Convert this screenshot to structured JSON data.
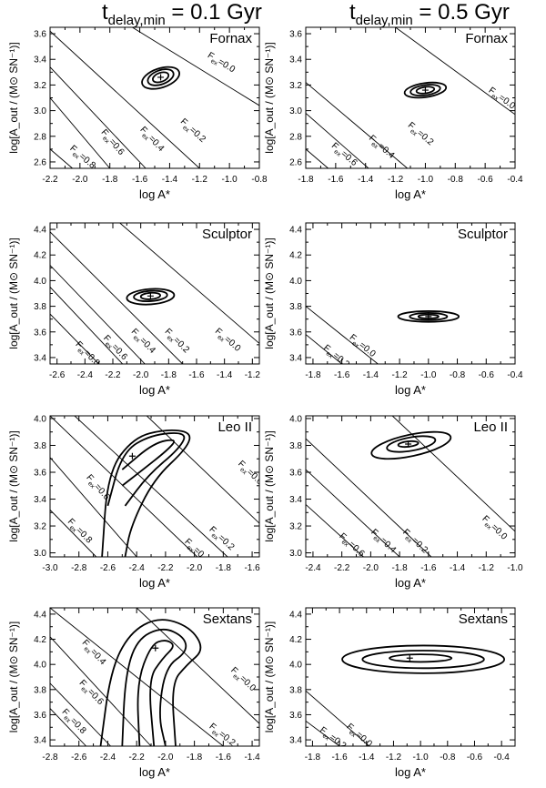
{
  "columns": [
    {
      "title_t": "t",
      "title_sub": "delay,min",
      "title_rest": " = 0.1 Gyr"
    },
    {
      "title_t": "t",
      "title_sub": "delay,min",
      "title_rest": " = 0.5 Gyr"
    }
  ],
  "ylabel": "log[A_out / (M⊙ SN⁻¹)]",
  "xlabel": "log A*",
  "chart_data": [
    {
      "type": "contour",
      "galaxy": "Fornax",
      "tdelay_gyr": 0.1,
      "xlim": [
        -2.2,
        -0.8
      ],
      "ylim": [
        2.55,
        3.65
      ],
      "xticks": [
        "-2.2",
        "-2.0",
        "-1.8",
        "-1.6",
        "-1.4",
        "-1.2",
        "-1.0",
        "-0.8"
      ],
      "yticks": [
        "2.6",
        "2.8",
        "3.0",
        "3.2",
        "3.4",
        "3.6"
      ],
      "best_fit": {
        "x": -1.46,
        "y": 3.26
      },
      "fex_lines": [
        {
          "label": "0.8",
          "p1": [
            -2.05,
            2.55
          ],
          "p2": [
            -2.2,
            2.7
          ],
          "lx": -2.07,
          "ly": 2.7
        },
        {
          "label": "0.6",
          "p1": [
            -1.8,
            2.55
          ],
          "p2": [
            -2.2,
            3.1
          ],
          "lx": -1.86,
          "ly": 2.83
        },
        {
          "label": "0.4",
          "p1": [
            -1.56,
            2.55
          ],
          "p2": [
            -2.2,
            3.34
          ],
          "lx": -1.6,
          "ly": 2.85
        },
        {
          "label": "0.2",
          "p1": [
            -1.2,
            2.55
          ],
          "p2": [
            -2.2,
            3.62
          ],
          "lx": -1.33,
          "ly": 2.91
        },
        {
          "label": "0.0",
          "p1": [
            -0.8,
            3.04
          ],
          "p2": [
            -1.65,
            3.65
          ],
          "lx": -1.15,
          "ly": 3.42
        }
      ],
      "contours": [
        {
          "cx": -1.46,
          "cy": 3.26,
          "rx": 0.055,
          "ry": 0.035,
          "rot": -20
        },
        {
          "cx": -1.46,
          "cy": 3.26,
          "rx": 0.09,
          "ry": 0.055,
          "rot": -20
        },
        {
          "cx": -1.46,
          "cy": 3.255,
          "rx": 0.13,
          "ry": 0.075,
          "rot": -18
        }
      ]
    },
    {
      "type": "contour",
      "galaxy": "Fornax",
      "tdelay_gyr": 0.5,
      "xlim": [
        -1.8,
        -0.4
      ],
      "ylim": [
        2.55,
        3.65
      ],
      "xticks": [
        "-1.8",
        "-1.6",
        "-1.4",
        "-1.2",
        "-1.0",
        "-0.8",
        "-0.6",
        "-0.4"
      ],
      "yticks": [
        "2.6",
        "2.8",
        "3.0",
        "3.2",
        "3.4",
        "3.6"
      ],
      "best_fit": {
        "x": -1.0,
        "y": 3.16
      },
      "fex_lines": [
        {
          "label": "0.6",
          "p1": [
            -1.65,
            2.55
          ],
          "p2": [
            -1.8,
            2.7
          ],
          "lx": -1.63,
          "ly": 2.72
        },
        {
          "label": "0.4",
          "p1": [
            -1.38,
            2.55
          ],
          "p2": [
            -1.8,
            2.98
          ],
          "lx": -1.38,
          "ly": 2.78
        },
        {
          "label": "0.2",
          "p1": [
            -1.12,
            2.55
          ],
          "p2": [
            -1.8,
            3.22
          ],
          "lx": -1.12,
          "ly": 2.88
        },
        {
          "label": "0.0",
          "p1": [
            -0.4,
            2.97
          ],
          "p2": [
            -1.2,
            3.65
          ],
          "lx": -0.58,
          "ly": 3.15
        }
      ],
      "contours": [
        {
          "cx": -1.0,
          "cy": 3.16,
          "rx": 0.06,
          "ry": 0.025,
          "rot": -8
        },
        {
          "cx": -1.0,
          "cy": 3.16,
          "rx": 0.1,
          "ry": 0.04,
          "rot": -8
        },
        {
          "cx": -1.0,
          "cy": 3.16,
          "rx": 0.14,
          "ry": 0.055,
          "rot": -8
        }
      ]
    },
    {
      "type": "contour",
      "galaxy": "Sculptor",
      "tdelay_gyr": 0.1,
      "xlim": [
        -2.65,
        -1.15
      ],
      "ylim": [
        3.35,
        4.45
      ],
      "xticks": [
        "-2.6",
        "-2.4",
        "-2.2",
        "-2.0",
        "-1.8",
        "-1.6",
        "-1.4",
        "-1.2"
      ],
      "yticks": [
        "3.4",
        "3.6",
        "3.8",
        "4.0",
        "4.2",
        "4.4"
      ],
      "best_fit": {
        "x": -1.93,
        "y": 3.88
      },
      "fex_lines": [
        {
          "label": "0.8",
          "p1": [
            -2.3,
            3.35
          ],
          "p2": [
            -2.65,
            3.74
          ],
          "lx": -2.47,
          "ly": 3.5
        },
        {
          "label": "0.6",
          "p1": [
            -2.13,
            3.35
          ],
          "p2": [
            -2.65,
            3.95
          ],
          "lx": -2.27,
          "ly": 3.55
        },
        {
          "label": "0.4",
          "p1": [
            -1.97,
            3.35
          ],
          "p2": [
            -2.65,
            4.12
          ],
          "lx": -2.07,
          "ly": 3.6
        },
        {
          "label": "0.2",
          "p1": [
            -1.7,
            3.35
          ],
          "p2": [
            -2.65,
            4.38
          ],
          "lx": -1.83,
          "ly": 3.6
        },
        {
          "label": "0.0",
          "p1": [
            -1.15,
            3.51
          ],
          "p2": [
            -2.15,
            4.45
          ],
          "lx": -1.47,
          "ly": 3.6
        }
      ],
      "contours": [
        {
          "cx": -1.93,
          "cy": 3.88,
          "rx": 0.07,
          "ry": 0.025,
          "rot": -4
        },
        {
          "cx": -1.93,
          "cy": 3.88,
          "rx": 0.12,
          "ry": 0.04,
          "rot": -4
        },
        {
          "cx": -1.93,
          "cy": 3.875,
          "rx": 0.17,
          "ry": 0.06,
          "rot": -4
        }
      ]
    },
    {
      "type": "contour",
      "galaxy": "Sculptor",
      "tdelay_gyr": 0.5,
      "xlim": [
        -1.85,
        -0.4
      ],
      "ylim": [
        3.35,
        4.45
      ],
      "xticks": [
        "-1.8",
        "-1.6",
        "-1.4",
        "-1.2",
        "-1.0",
        "-0.8",
        "-0.6",
        "-0.4"
      ],
      "yticks": [
        "3.4",
        "3.6",
        "3.8",
        "4.0",
        "4.2",
        "4.4"
      ],
      "best_fit": {
        "x": -1.0,
        "y": 3.72
      },
      "fex_lines": [
        {
          "label": "0.2",
          "p1": [
            -1.6,
            3.35
          ],
          "p2": [
            -1.85,
            3.58
          ],
          "lx": -1.73,
          "ly": 3.47
        },
        {
          "label": "0.0",
          "p1": [
            -1.35,
            3.35
          ],
          "p2": [
            -1.85,
            3.8
          ],
          "lx": -1.55,
          "ly": 3.55
        }
      ],
      "contours": [
        {
          "cx": -1.0,
          "cy": 3.72,
          "rx": 0.07,
          "ry": 0.015,
          "rot": 0
        },
        {
          "cx": -1.0,
          "cy": 3.72,
          "rx": 0.13,
          "ry": 0.028,
          "rot": 0
        },
        {
          "cx": -1.0,
          "cy": 3.72,
          "rx": 0.21,
          "ry": 0.042,
          "rot": 0
        }
      ]
    },
    {
      "type": "contour",
      "galaxy": "Leo II",
      "tdelay_gyr": 0.1,
      "xlim": [
        -3.0,
        -1.55
      ],
      "ylim": [
        2.97,
        4.02
      ],
      "xticks": [
        "-3.0",
        "-2.8",
        "-2.6",
        "-2.4",
        "-2.2",
        "-2.0",
        "-1.8",
        "-1.6"
      ],
      "yticks": [
        "3.0",
        "3.2",
        "3.4",
        "3.6",
        "3.8",
        "4.0"
      ],
      "best_fit": {
        "x": -2.43,
        "y": 3.72
      },
      "fex_lines": [
        {
          "label": "0.8",
          "p1": [
            -2.68,
            2.97
          ],
          "p2": [
            -3.0,
            3.32
          ],
          "lx": -2.88,
          "ly": 3.23
        },
        {
          "label": "0.6",
          "p1": [
            -2.4,
            2.97
          ],
          "p2": [
            -3.0,
            3.71
          ],
          "lx": -2.75,
          "ly": 3.56
        },
        {
          "label": "0.4",
          "p1": [
            -1.98,
            2.97
          ],
          "p2": [
            -3.0,
            4.02
          ],
          "lx": -2.07,
          "ly": 3.08
        },
        {
          "label": "0.2",
          "p1": [
            -1.77,
            2.97
          ],
          "p2": [
            -2.83,
            4.02
          ],
          "lx": -1.9,
          "ly": 3.17
        },
        {
          "label": "0.0",
          "p1": [
            -1.55,
            3.22
          ],
          "p2": [
            -2.33,
            4.02
          ],
          "lx": -1.7,
          "ly": 3.66
        }
      ],
      "banana": [
        {
          "pts": [
            [
              -2.5,
              3.62
            ],
            [
              -2.28,
              3.82
            ],
            [
              -2.12,
              3.85
            ],
            [
              -2.18,
              3.77
            ],
            [
              -2.38,
              3.6
            ],
            [
              -2.5,
              3.5
            ]
          ]
        },
        {
          "pts": [
            [
              -2.6,
              3.35
            ],
            [
              -2.5,
              3.75
            ],
            [
              -2.3,
              3.88
            ],
            [
              -2.05,
              3.9
            ],
            [
              -2.1,
              3.78
            ],
            [
              -2.32,
              3.58
            ],
            [
              -2.48,
              3.35
            ]
          ]
        },
        {
          "pts": [
            [
              -2.64,
              2.97
            ],
            [
              -2.6,
              3.6
            ],
            [
              -2.42,
              3.86
            ],
            [
              -2.2,
              3.92
            ],
            [
              -2.02,
              3.9
            ],
            [
              -2.05,
              3.78
            ],
            [
              -2.28,
              3.55
            ],
            [
              -2.44,
              3.2
            ],
            [
              -2.48,
              2.97
            ]
          ]
        }
      ]
    },
    {
      "type": "contour",
      "galaxy": "Leo II",
      "tdelay_gyr": 0.5,
      "xlim": [
        -2.45,
        -1.0
      ],
      "ylim": [
        2.97,
        4.02
      ],
      "xticks": [
        "-2.4",
        "-2.2",
        "-2.0",
        "-1.8",
        "-1.6",
        "-1.4",
        "-1.2",
        "-1.0"
      ],
      "yticks": [
        "3.0",
        "3.2",
        "3.4",
        "3.6",
        "3.8",
        "4.0"
      ],
      "best_fit": {
        "x": -1.74,
        "y": 3.81
      },
      "fex_lines": [
        {
          "label": "0.6",
          "p1": [
            -2.05,
            2.97
          ],
          "p2": [
            -2.45,
            3.36
          ],
          "lx": -2.22,
          "ly": 3.12
        },
        {
          "label": "0.4",
          "p1": [
            -1.8,
            2.97
          ],
          "p2": [
            -2.45,
            3.62
          ],
          "lx": -2.0,
          "ly": 3.15
        },
        {
          "label": "0.2",
          "p1": [
            -1.58,
            2.97
          ],
          "p2": [
            -2.45,
            3.85
          ],
          "lx": -1.78,
          "ly": 3.15
        },
        {
          "label": "0.0",
          "p1": [
            -1.0,
            3.16
          ],
          "p2": [
            -1.85,
            4.02
          ],
          "lx": -1.23,
          "ly": 3.25
        }
      ],
      "contours": [
        {
          "cx": -1.74,
          "cy": 3.81,
          "rx": 0.07,
          "ry": 0.02,
          "rot": -6
        },
        {
          "cx": -1.72,
          "cy": 3.81,
          "rx": 0.17,
          "ry": 0.05,
          "rot": -10
        },
        {
          "cx": -1.72,
          "cy": 3.8,
          "rx": 0.28,
          "ry": 0.08,
          "rot": -12
        }
      ]
    },
    {
      "type": "contour",
      "galaxy": "Sextans",
      "tdelay_gyr": 0.1,
      "xlim": [
        -2.8,
        -1.35
      ],
      "ylim": [
        3.35,
        4.45
      ],
      "xticks": [
        "-2.8",
        "-2.6",
        "-2.4",
        "-2.2",
        "-2.0",
        "-1.8",
        "-1.6",
        "-1.4"
      ],
      "yticks": [
        "3.4",
        "3.6",
        "3.8",
        "4.0",
        "4.2",
        "4.4"
      ],
      "best_fit": {
        "x": -2.07,
        "y": 4.13
      },
      "fex_lines": [
        {
          "label": "0.8",
          "p1": [
            -2.55,
            3.35
          ],
          "p2": [
            -2.8,
            3.65
          ],
          "lx": -2.72,
          "ly": 3.62
        },
        {
          "label": "0.6",
          "p1": [
            -2.38,
            3.35
          ],
          "p2": [
            -2.8,
            3.85
          ],
          "lx": -2.6,
          "ly": 3.85
        },
        {
          "label": "0.4",
          "p1": [
            -2.1,
            3.35
          ],
          "p2": [
            -2.8,
            4.22
          ],
          "lx": -2.58,
          "ly": 4.17
        },
        {
          "label": "0.2",
          "p1": [
            -1.6,
            3.35
          ],
          "p2": [
            -2.8,
            4.45
          ],
          "lx": -1.7,
          "ly": 3.5
        },
        {
          "label": "0.0",
          "p1": [
            -1.35,
            3.53
          ],
          "p2": [
            -2.2,
            4.45
          ],
          "lx": -1.55,
          "ly": 3.95
        }
      ],
      "banana": [
        {
          "pts": [
            [
              -2.18,
              3.35
            ],
            [
              -2.2,
              3.85
            ],
            [
              -2.1,
              4.16
            ],
            [
              -2.0,
              4.2
            ],
            [
              -1.93,
              4.15
            ],
            [
              -2.02,
              4.05
            ],
            [
              -2.12,
              3.88
            ],
            [
              -2.08,
              3.35
            ]
          ]
        },
        {
          "pts": [
            [
              -2.3,
              3.35
            ],
            [
              -2.28,
              3.9
            ],
            [
              -2.2,
              4.2
            ],
            [
              -2.02,
              4.3
            ],
            [
              -1.87,
              4.22
            ],
            [
              -1.85,
              4.1
            ],
            [
              -2.0,
              3.98
            ],
            [
              -2.05,
              3.6
            ],
            [
              -2.0,
              3.35
            ]
          ]
        },
        {
          "pts": [
            [
              -2.45,
              3.35
            ],
            [
              -2.38,
              3.95
            ],
            [
              -2.25,
              4.25
            ],
            [
              -2.05,
              4.38
            ],
            [
              -1.83,
              4.3
            ],
            [
              -1.73,
              4.12
            ],
            [
              -1.85,
              4.0
            ],
            [
              -1.96,
              3.85
            ],
            [
              -1.93,
              3.35
            ]
          ]
        }
      ]
    },
    {
      "type": "contour",
      "galaxy": "Sextans",
      "tdelay_gyr": 0.5,
      "xlim": [
        -1.85,
        -0.3
      ],
      "ylim": [
        3.35,
        4.45
      ],
      "xticks": [
        "-1.8",
        "-1.6",
        "-1.4",
        "-1.2",
        "-1.0",
        "-0.8",
        "-0.6",
        "-0.4"
      ],
      "yticks": [
        "3.4",
        "3.6",
        "3.8",
        "4.0",
        "4.2",
        "4.4"
      ],
      "best_fit": {
        "x": -1.08,
        "y": 4.05
      },
      "fex_lines": [
        {
          "label": "0.2",
          "p1": [
            -1.6,
            3.35
          ],
          "p2": [
            -1.85,
            3.55
          ],
          "lx": -1.75,
          "ly": 3.47
        },
        {
          "label": "0.0",
          "p1": [
            -1.38,
            3.35
          ],
          "p2": [
            -1.85,
            3.79
          ],
          "lx": -1.55,
          "ly": 3.5
        }
      ],
      "contours": [
        {
          "cx": -1.0,
          "cy": 4.05,
          "rx": 0.23,
          "ry": 0.03,
          "rot": 0
        },
        {
          "cx": -0.98,
          "cy": 4.04,
          "rx": 0.45,
          "ry": 0.07,
          "rot": 0
        },
        {
          "cx": -0.98,
          "cy": 4.04,
          "rx": 0.6,
          "ry": 0.11,
          "rot": 0
        }
      ]
    }
  ]
}
